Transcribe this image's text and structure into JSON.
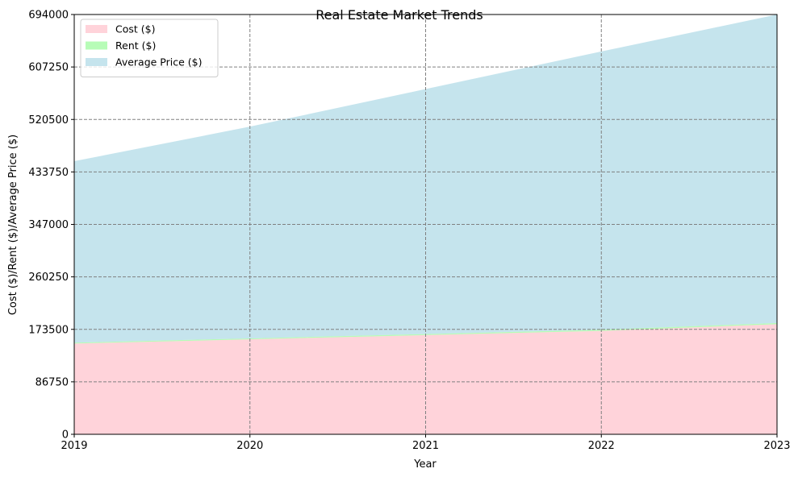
{
  "chart_data": {
    "type": "area",
    "stacked": true,
    "title": "Real Estate Market Trends",
    "xlabel": "Year",
    "ylabel": "Cost ($)/Rent ($)/Average Price ($)",
    "x": [
      2019,
      2020,
      2021,
      2022,
      2023
    ],
    "x_tick_labels": [
      "2019",
      "2020",
      "2021",
      "2022",
      "2023"
    ],
    "ylim": [
      0,
      694000
    ],
    "y_ticks": [
      0,
      86750,
      173500,
      260250,
      347000,
      433750,
      520500,
      607250,
      694000
    ],
    "y_tick_labels": [
      "0",
      "86750",
      "173500",
      "260250",
      "347000",
      "433750",
      "520500",
      "607250",
      "694000"
    ],
    "grid": true,
    "grid_style": "dashed",
    "legend_position": "top-left",
    "series": [
      {
        "name": "Cost ($)",
        "color": "#ffc0cb",
        "values": [
          150000,
          157000,
          164000,
          171000,
          182000
        ]
      },
      {
        "name": "Rent ($)",
        "color": "#98fb98",
        "values": [
          1500,
          1600,
          1750,
          1900,
          2000
        ]
      },
      {
        "name": "Average Price ($)",
        "color": "#add8e6",
        "values": [
          300000,
          350000,
          405000,
          460000,
          510000
        ]
      }
    ]
  }
}
